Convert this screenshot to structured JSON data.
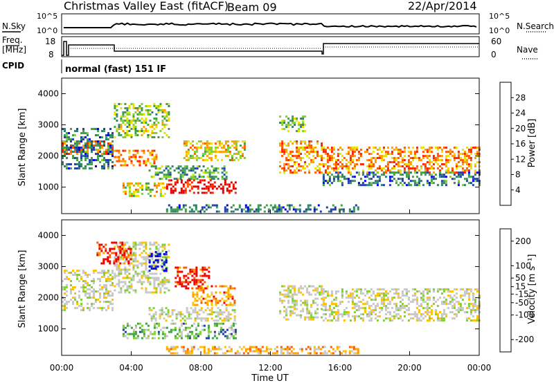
{
  "header": {
    "title": "Christmas Valley East (fitACF)",
    "beam": "Beam 09",
    "date": "22/Apr/2014"
  },
  "noise_panel": {
    "left_label": "N.Sky",
    "right_label": "N.Search",
    "left_ticks": [
      "10^5",
      "10^0"
    ],
    "right_ticks": [
      "10^5",
      "10^0"
    ]
  },
  "freq_panel": {
    "left_label_1": "Freq.",
    "left_label_2": "[MHz]",
    "right_label": "Nave",
    "left_ticks": [
      "18",
      "8"
    ],
    "right_ticks": [
      "60",
      "0"
    ]
  },
  "cpid": {
    "label": "CPID",
    "value": "normal (fast) 151 IF"
  },
  "colors": {
    "power_scale": [
      "#0000ee",
      "#1f3faa",
      "#2f7f6e",
      "#3fa04a",
      "#7fd030",
      "#e8e000",
      "#ff9d00",
      "#ff5a00",
      "#ff2000",
      "#e00000"
    ],
    "velocity_scale": [
      "#ee0000",
      "#ff5a00",
      "#ff9d00",
      "#ffc000",
      "#c8c8c8",
      "#c8c8c8",
      "#7fd030",
      "#3fa04a",
      "#1f3faa",
      "#0000ee"
    ]
  },
  "chart_data": [
    {
      "type": "heatmap",
      "name": "power",
      "xlabel": "Time UT",
      "ylabel": "Slant Range [km]",
      "x_ticks": [
        "00:00",
        "04:00",
        "08:00",
        "12:00",
        "16:00",
        "20:00",
        "00:00"
      ],
      "y_ticks": [
        1000,
        2000,
        3000,
        4000
      ],
      "ylim": [
        150,
        4500
      ],
      "xlim_hours": [
        0,
        24
      ],
      "colorbar": {
        "label": "Power [dB]",
        "ticks": [
          4,
          8,
          12,
          16,
          20,
          24,
          28
        ],
        "range": [
          0,
          32
        ]
      },
      "regions": [
        {
          "t0": 0.0,
          "t1": 2.9,
          "r0": 2100,
          "r1": 2500,
          "level": 0.75
        },
        {
          "t0": 0.0,
          "t1": 2.9,
          "r0": 1600,
          "r1": 2900,
          "level": 0.25
        },
        {
          "t0": 3.0,
          "t1": 5.5,
          "r0": 1700,
          "r1": 2200,
          "level": 0.7
        },
        {
          "t0": 3.0,
          "t1": 6.2,
          "r0": 2600,
          "r1": 3700,
          "level": 0.45
        },
        {
          "t0": 5.0,
          "t1": 9.5,
          "r0": 1300,
          "r1": 1700,
          "level": 0.35
        },
        {
          "t0": 7.0,
          "t1": 10.5,
          "r0": 1900,
          "r1": 2500,
          "level": 0.55
        },
        {
          "t0": 3.5,
          "t1": 6.0,
          "r0": 750,
          "r1": 1150,
          "level": 0.55
        },
        {
          "t0": 6.0,
          "t1": 10.0,
          "r0": 800,
          "r1": 1250,
          "level": 0.95
        },
        {
          "t0": 12.5,
          "t1": 14.0,
          "r0": 2800,
          "r1": 3300,
          "level": 0.4
        },
        {
          "t0": 12.5,
          "t1": 15.0,
          "r0": 1500,
          "r1": 2500,
          "level": 0.7
        },
        {
          "t0": 15.0,
          "t1": 24.0,
          "r0": 1500,
          "r1": 2300,
          "level": 0.7
        },
        {
          "t0": 15.0,
          "t1": 24.0,
          "r0": 1100,
          "r1": 1500,
          "level": 0.25
        },
        {
          "t0": 6.0,
          "t1": 17.0,
          "r0": 200,
          "r1": 450,
          "level": 0.25
        }
      ]
    },
    {
      "type": "heatmap",
      "name": "velocity",
      "xlabel": "Time UT",
      "ylabel": "Slant Range [km]",
      "x_ticks": [
        "00:00",
        "04:00",
        "08:00",
        "12:00",
        "16:00",
        "20:00",
        "00:00"
      ],
      "y_ticks": [
        1000,
        2000,
        3000,
        4000
      ],
      "ylim": [
        150,
        4500
      ],
      "xlim_hours": [
        0,
        24
      ],
      "colorbar": {
        "label": "Velocity [m s⁻¹]",
        "ticks": [
          200,
          100,
          50,
          15,
          -15,
          -50,
          -100,
          -200
        ],
        "range": [
          -250,
          250
        ]
      },
      "regions": [
        {
          "t0": 0.0,
          "t1": 2.9,
          "r0": 1600,
          "r1": 2900,
          "level": 0.5
        },
        {
          "t0": 3.0,
          "t1": 6.2,
          "r0": 2200,
          "r1": 3800,
          "level": 0.5
        },
        {
          "t0": 2.0,
          "t1": 4.0,
          "r0": 3100,
          "r1": 3800,
          "level": 0.05
        },
        {
          "t0": 5.0,
          "t1": 6.0,
          "r0": 2900,
          "r1": 3500,
          "level": 0.95
        },
        {
          "t0": 6.5,
          "t1": 8.5,
          "r0": 2300,
          "r1": 3000,
          "level": 0.05
        },
        {
          "t0": 7.5,
          "t1": 10.0,
          "r0": 1800,
          "r1": 2400,
          "level": 0.25
        },
        {
          "t0": 5.0,
          "t1": 10.0,
          "r0": 1300,
          "r1": 1700,
          "level": 0.5
        },
        {
          "t0": 3.5,
          "t1": 10.0,
          "r0": 700,
          "r1": 1200,
          "level": 0.68
        },
        {
          "t0": 12.5,
          "t1": 15.0,
          "r0": 1300,
          "r1": 2400,
          "level": 0.5
        },
        {
          "t0": 15.0,
          "t1": 24.0,
          "r0": 1300,
          "r1": 2300,
          "level": 0.5
        },
        {
          "t0": 6.0,
          "t1": 17.0,
          "r0": 200,
          "r1": 450,
          "level": 0.3
        }
      ]
    }
  ]
}
